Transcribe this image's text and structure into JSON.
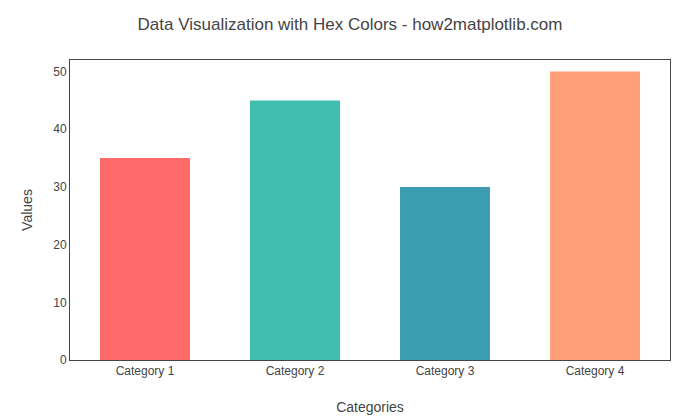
{
  "chart_data": {
    "type": "bar",
    "title": "Data Visualization with Hex Colors - how2matplotlib.com",
    "xlabel": "Categories",
    "ylabel": "Values",
    "categories": [
      "Category 1",
      "Category 2",
      "Category 3",
      "Category 4"
    ],
    "values": [
      35,
      45,
      30,
      50
    ],
    "colors": [
      "#FF6B6B",
      "#40BFB0",
      "#3D9DB3",
      "#FFA07A"
    ],
    "ylim": [
      0,
      52
    ],
    "yticks": [
      0,
      10,
      20,
      30,
      40,
      50
    ],
    "grid": false
  }
}
